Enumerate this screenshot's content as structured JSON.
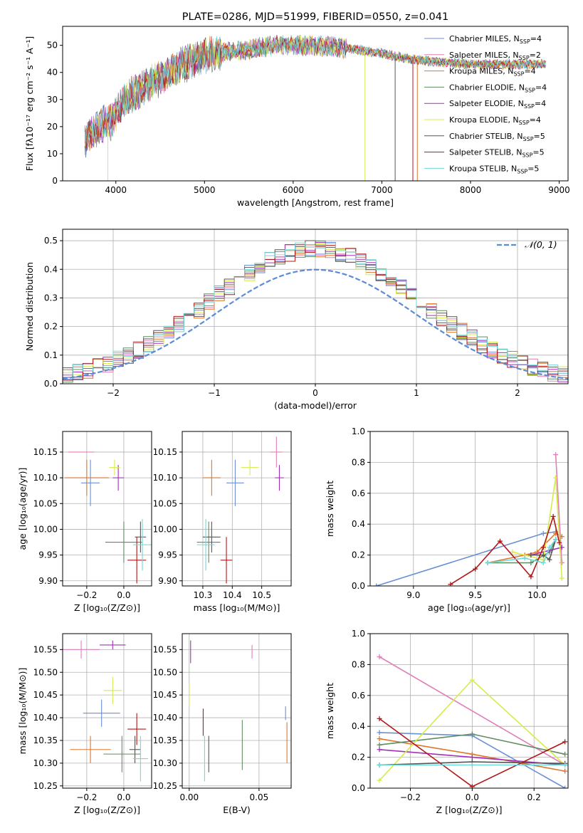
{
  "colors": {
    "Chabrier MILES": "#6b8fd6",
    "Salpeter MILES": "#e07fb8",
    "Kroupa MILES": "#e0762a",
    "Chabrier ELODIE": "#5f8c62",
    "Salpeter ELODIE": "#a330b8",
    "Kroupa ELODIE": "#d6ec4a",
    "Chabrier STELIB": "#555555",
    "Salpeter STELIB": "#b01818",
    "Kroupa STELIB": "#6fd8d8"
  },
  "chart_data": [
    {
      "id": "spectrum",
      "type": "line",
      "title": "PLATE=0286, MJD=51999, FIBERID=0550, z=0.041",
      "xlabel": "wavelength [Angstrom, rest frame]",
      "ylabel": "Flux [fλ10⁻¹⁷ erg cm⁻² s⁻¹ A⁻¹]",
      "xlim": [
        3400,
        9100
      ],
      "ylim": [
        0,
        57
      ],
      "xticks": [
        4000,
        5000,
        6000,
        7000,
        8000,
        9000
      ],
      "yticks": [
        0,
        10,
        20,
        30,
        40,
        50
      ],
      "legend_position": "top-right",
      "series": [
        {
          "name": "Chabrier MILES",
          "nssp": "4"
        },
        {
          "name": "Salpeter MILES",
          "nssp": "2"
        },
        {
          "name": "Kroupa MILES",
          "nssp": "4"
        },
        {
          "name": "Chabrier ELODIE",
          "nssp": "4"
        },
        {
          "name": "Salpeter ELODIE",
          "nssp": "4"
        },
        {
          "name": "Kroupa ELODIE",
          "nssp": "4"
        },
        {
          "name": "Chabrier STELIB",
          "nssp": "5"
        },
        {
          "name": "Salpeter STELIB",
          "nssp": "5"
        },
        {
          "name": "Kroupa STELIB",
          "nssp": "5"
        }
      ],
      "continuum_x": [
        3650,
        3800,
        3950,
        4100,
        4300,
        4500,
        4700,
        4900,
        5100,
        5400,
        5800,
        6200,
        6600,
        7000,
        7300,
        7600,
        8000,
        8400,
        8850
      ],
      "continuum_y": [
        15,
        20,
        22,
        30,
        34,
        38,
        42,
        45,
        47,
        48,
        50,
        50,
        49,
        47,
        45,
        44,
        43,
        43,
        43
      ],
      "dips_x": [
        3910,
        6810,
        7150,
        7350,
        7400
      ]
    },
    {
      "id": "residuals",
      "type": "histogram",
      "xlabel": "(data-model)/error",
      "ylabel": "Normed distribution",
      "xlim": [
        -2.5,
        2.5
      ],
      "ylim": [
        0,
        0.54
      ],
      "xticks": [
        -2,
        -1,
        0,
        1,
        2
      ],
      "yticks": [
        0.0,
        0.1,
        0.2,
        0.3,
        0.4,
        0.5
      ],
      "legend": "𝒩(0, 1)",
      "legend_position": "top-right",
      "bin_width": 0.1
    },
    {
      "id": "age-vs-Z",
      "type": "scatter",
      "xlabel": "Z [log₁₀(Z/Z⊙)]",
      "ylabel": "age  [log₁₀(age/yr)]",
      "xlim": [
        -0.33,
        0.15
      ],
      "ylim": [
        9.89,
        10.19
      ],
      "xticks": [
        -0.2,
        0.0
      ],
      "yticks": [
        9.9,
        9.95,
        10.0,
        10.05,
        10.1,
        10.15
      ],
      "points": [
        {
          "series": "Chabrier MILES",
          "x": -0.18,
          "y": 10.09,
          "xerr": 0.05,
          "yerr": 0.045
        },
        {
          "series": "Salpeter MILES",
          "x": -0.23,
          "y": 10.15,
          "xerr": 0.07,
          "yerr": 0.0
        },
        {
          "series": "Kroupa MILES",
          "x": -0.2,
          "y": 10.1,
          "xerr": 0.12,
          "yerr": 0.035
        },
        {
          "series": "Chabrier ELODIE",
          "x": 0.0,
          "y": 9.975,
          "xerr": 0.1,
          "yerr": 0.04
        },
        {
          "series": "Salpeter ELODIE",
          "x": -0.03,
          "y": 10.1,
          "xerr": 0.03,
          "yerr": 0.025
        },
        {
          "series": "Kroupa ELODIE",
          "x": -0.05,
          "y": 10.12,
          "xerr": 0.03,
          "yerr": 0.015
        },
        {
          "series": "Chabrier STELIB",
          "x": 0.09,
          "y": 9.985,
          "xerr": 0.03,
          "yerr": 0.03
        },
        {
          "series": "Salpeter STELIB",
          "x": 0.07,
          "y": 9.94,
          "xerr": 0.05,
          "yerr": 0.045
        },
        {
          "series": "Kroupa STELIB",
          "x": 0.1,
          "y": 9.97,
          "xerr": 0.05,
          "yerr": 0.05
        }
      ]
    },
    {
      "id": "age-vs-mass",
      "type": "scatter",
      "xlabel": "mass [log₁₀(M/M⊙)]",
      "ylabel": "",
      "xlim": [
        10.23,
        10.6
      ],
      "ylim": [
        9.89,
        10.19
      ],
      "xticks": [
        10.3,
        10.4,
        10.5
      ],
      "yticks": [
        9.9,
        9.95,
        10.0,
        10.05,
        10.1,
        10.15
      ],
      "points": [
        {
          "series": "Chabrier MILES",
          "x": 10.41,
          "y": 10.09,
          "xerr": 0.03,
          "yerr": 0.045
        },
        {
          "series": "Salpeter MILES",
          "x": 10.55,
          "y": 10.15,
          "xerr": 0.02,
          "yerr": 0.03
        },
        {
          "series": "Kroupa MILES",
          "x": 10.33,
          "y": 10.1,
          "xerr": 0.03,
          "yerr": 0.035
        },
        {
          "series": "Chabrier ELODIE",
          "x": 10.32,
          "y": 9.975,
          "xerr": 0.04,
          "yerr": 0.04
        },
        {
          "series": "Salpeter ELODIE",
          "x": 10.56,
          "y": 10.1,
          "xerr": 0.015,
          "yerr": 0.025
        },
        {
          "series": "Kroupa ELODIE",
          "x": 10.46,
          "y": 10.12,
          "xerr": 0.03,
          "yerr": 0.015
        },
        {
          "series": "Chabrier STELIB",
          "x": 10.33,
          "y": 9.985,
          "xerr": 0.03,
          "yerr": 0.03
        },
        {
          "series": "Salpeter STELIB",
          "x": 10.38,
          "y": 9.94,
          "xerr": 0.02,
          "yerr": 0.045
        },
        {
          "series": "Kroupa STELIB",
          "x": 10.31,
          "y": 9.97,
          "xerr": 0.03,
          "yerr": 0.05
        }
      ]
    },
    {
      "id": "weight-vs-age",
      "type": "line",
      "xlabel": "age  [log₁₀(age/yr)]",
      "ylabel": "mass weight",
      "xlim": [
        8.65,
        10.25
      ],
      "ylim": [
        0,
        1
      ],
      "xticks": [
        9.0,
        9.5,
        10.0
      ],
      "yticks": [
        0.0,
        0.2,
        0.4,
        0.6,
        0.8,
        1.0
      ],
      "series": [
        {
          "name": "Chabrier MILES",
          "x": [
            8.7,
            10.05,
            10.15
          ],
          "y": [
            0.0,
            0.34,
            0.35
          ]
        },
        {
          "name": "Kroupa MILES",
          "x": [
            9.6,
            9.9,
            10.0,
            10.15,
            10.2
          ],
          "y": [
            0.15,
            0.2,
            0.22,
            0.34,
            0.32
          ]
        },
        {
          "name": "Salpeter MILES",
          "x": [
            10.15,
            10.2
          ],
          "y": [
            0.85,
            0.15
          ]
        },
        {
          "name": "Chabrier ELODIE",
          "x": [
            9.6,
            9.95,
            10.1,
            10.15
          ],
          "y": [
            0.15,
            0.15,
            0.22,
            0.3
          ]
        },
        {
          "name": "Salpeter ELODIE",
          "x": [
            9.95,
            10.1,
            10.2
          ],
          "y": [
            0.2,
            0.23,
            0.25
          ]
        },
        {
          "name": "Kroupa ELODIE",
          "x": [
            9.8,
            10.05,
            10.15,
            10.2
          ],
          "y": [
            0.22,
            0.17,
            0.7,
            0.05
          ]
        },
        {
          "name": "Chabrier STELIB",
          "x": [
            9.95,
            10.05,
            10.1,
            10.15
          ],
          "y": [
            0.2,
            0.2,
            0.17,
            0.3
          ]
        },
        {
          "name": "Salpeter STELIB",
          "x": [
            9.3,
            9.5,
            9.7,
            9.95,
            10.05,
            10.13,
            10.18
          ],
          "y": [
            0.01,
            0.11,
            0.29,
            0.06,
            0.25,
            0.45,
            0.28
          ]
        },
        {
          "name": "Kroupa STELIB",
          "x": [
            9.6,
            9.9,
            10.05,
            10.1,
            10.15
          ],
          "y": [
            0.15,
            0.18,
            0.15,
            0.25,
            0.3
          ]
        }
      ]
    },
    {
      "id": "mass-vs-Z",
      "type": "scatter",
      "xlabel": "Z [log₁₀(Z/Z⊙)]",
      "ylabel": "mass [log₁₀(M/M⊙)]",
      "xlim": [
        -0.33,
        0.15
      ],
      "ylim": [
        10.245,
        10.585
      ],
      "xticks": [
        -0.2,
        0.0
      ],
      "yticks": [
        10.25,
        10.3,
        10.35,
        10.4,
        10.45,
        10.5,
        10.55
      ],
      "points": [
        {
          "series": "Chabrier MILES",
          "x": -0.12,
          "y": 10.41,
          "xerr": 0.1,
          "yerr": 0.03
        },
        {
          "series": "Salpeter MILES",
          "x": -0.23,
          "y": 10.55,
          "xerr": 0.1,
          "yerr": 0.02
        },
        {
          "series": "Kroupa MILES",
          "x": -0.18,
          "y": 10.33,
          "xerr": 0.11,
          "yerr": 0.03
        },
        {
          "series": "Chabrier ELODIE",
          "x": -0.01,
          "y": 10.32,
          "xerr": 0.1,
          "yerr": 0.04
        },
        {
          "series": "Salpeter ELODIE",
          "x": -0.06,
          "y": 10.56,
          "xerr": 0.07,
          "yerr": 0.01
        },
        {
          "series": "Kroupa ELODIE",
          "x": -0.06,
          "y": 10.46,
          "xerr": 0.05,
          "yerr": 0.03
        },
        {
          "series": "Chabrier STELIB",
          "x": 0.06,
          "y": 10.33,
          "xerr": 0.03,
          "yerr": 0.03
        },
        {
          "series": "Salpeter STELIB",
          "x": 0.07,
          "y": 10.375,
          "xerr": 0.05,
          "yerr": 0.035
        },
        {
          "series": "Kroupa STELIB",
          "x": 0.09,
          "y": 10.31,
          "xerr": 0.04,
          "yerr": 0.05
        }
      ]
    },
    {
      "id": "mass-vs-EBV",
      "type": "scatter",
      "xlabel": "E(B-V)",
      "ylabel": "",
      "xlim": [
        -0.005,
        0.073
      ],
      "ylim": [
        10.245,
        10.585
      ],
      "xticks": [
        0.0,
        0.05
      ],
      "xtick_labels": [
        "0.00",
        "0.05"
      ],
      "yticks": [
        10.25,
        10.3,
        10.35,
        10.4,
        10.45,
        10.5,
        10.55
      ],
      "points": [
        {
          "series": "Chabrier MILES",
          "x": 0.069,
          "y": 10.41,
          "xerr": 0.0,
          "yerr": 0.015
        },
        {
          "series": "Salpeter MILES",
          "x": 0.045,
          "y": 10.545,
          "xerr": 0.0,
          "yerr": 0.015
        },
        {
          "series": "Kroupa MILES",
          "x": 0.07,
          "y": 10.345,
          "xerr": 0.0,
          "yerr": 0.045
        },
        {
          "series": "Chabrier ELODIE",
          "x": 0.038,
          "y": 10.34,
          "xerr": 0.0,
          "yerr": 0.055
        },
        {
          "series": "Salpeter ELODIE",
          "x": 0.001,
          "y": 10.545,
          "xerr": 0.0,
          "yerr": 0.025
        },
        {
          "series": "Kroupa ELODIE",
          "x": 0.0,
          "y": 10.45,
          "xerr": 0.0,
          "yerr": 0.025
        },
        {
          "series": "Chabrier STELIB",
          "x": 0.014,
          "y": 10.32,
          "xerr": 0.0,
          "yerr": 0.04
        },
        {
          "series": "Salpeter STELIB",
          "x": 0.01,
          "y": 10.39,
          "xerr": 0.0,
          "yerr": 0.03
        },
        {
          "series": "Kroupa STELIB",
          "x": 0.011,
          "y": 10.31,
          "xerr": 0.0,
          "yerr": 0.05
        }
      ]
    },
    {
      "id": "weight-vs-Z",
      "type": "line",
      "xlabel": "Z [log₁₀(Z/Z⊙)]",
      "ylabel": "mass weight",
      "xlim": [
        -0.33,
        0.31
      ],
      "ylim": [
        0,
        1
      ],
      "xticks": [
        -0.2,
        0.0,
        0.2
      ],
      "yticks": [
        0.0,
        0.2,
        0.4,
        0.6,
        0.8,
        1.0
      ],
      "series": [
        {
          "name": "Salpeter MILES",
          "x": [
            -0.3,
            0.3
          ],
          "y": [
            0.85,
            0.15
          ]
        },
        {
          "name": "Chabrier MILES",
          "x": [
            -0.3,
            0.0,
            0.3
          ],
          "y": [
            0.36,
            0.34,
            0.0
          ]
        },
        {
          "name": "Kroupa MILES",
          "x": [
            -0.3,
            0.0,
            0.3
          ],
          "y": [
            0.32,
            0.22,
            0.11
          ]
        },
        {
          "name": "Chabrier ELODIE",
          "x": [
            -0.3,
            0.0,
            0.3
          ],
          "y": [
            0.28,
            0.35,
            0.22
          ]
        },
        {
          "name": "Salpeter ELODIE",
          "x": [
            -0.3,
            0.0,
            0.3
          ],
          "y": [
            0.25,
            0.2,
            0.15
          ]
        },
        {
          "name": "Kroupa ELODIE",
          "x": [
            -0.3,
            0.0,
            0.3
          ],
          "y": [
            0.05,
            0.7,
            0.15
          ]
        },
        {
          "name": "Chabrier STELIB",
          "x": [
            -0.3,
            0.0,
            0.3
          ],
          "y": [
            0.15,
            0.17,
            0.16
          ]
        },
        {
          "name": "Salpeter STELIB",
          "x": [
            -0.3,
            0.0,
            0.3
          ],
          "y": [
            0.45,
            0.01,
            0.3
          ]
        },
        {
          "name": "Kroupa STELIB",
          "x": [
            -0.3,
            0.0,
            0.3
          ],
          "y": [
            0.15,
            0.15,
            0.15
          ]
        }
      ]
    }
  ]
}
